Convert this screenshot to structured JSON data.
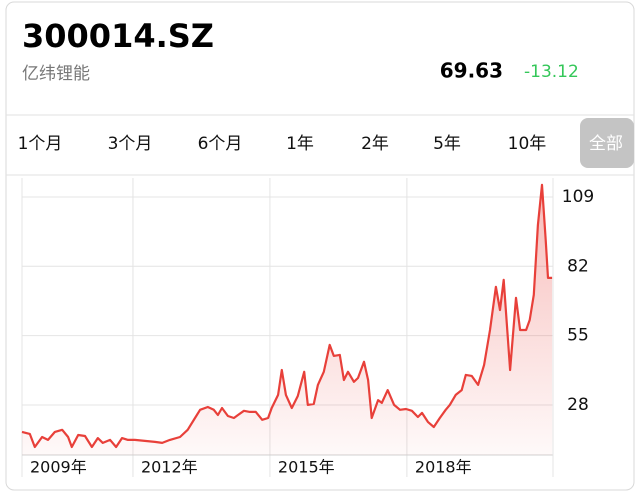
{
  "header": {
    "symbol": "300014.SZ",
    "name": "亿纬锂能",
    "price": "69.63",
    "change": "-13.12"
  },
  "tabs": [
    "1个月",
    "3个月",
    "6个月",
    "1年",
    "2年",
    "5年",
    "10年",
    "全部"
  ],
  "chart_data": {
    "type": "line",
    "x": [
      2009.57,
      2009.74,
      2009.85,
      2010.01,
      2010.14,
      2010.29,
      2010.45,
      2010.58,
      2010.66,
      2010.8,
      2010.95,
      2011.1,
      2011.23,
      2011.34,
      2011.5,
      2011.63,
      2011.76,
      2011.89,
      2012.04,
      2012.26,
      2012.48,
      2012.64,
      2012.81,
      2013.03,
      2013.2,
      2013.36,
      2013.47,
      2013.64,
      2013.77,
      2013.86,
      2013.95,
      2014.08,
      2014.21,
      2014.3,
      2014.43,
      2014.56,
      2014.69,
      2014.83,
      2014.96,
      2015.04,
      2015.18,
      2015.26,
      2015.35,
      2015.48,
      2015.61,
      2015.75,
      2015.83,
      2015.96,
      2016.05,
      2016.18,
      2016.31,
      2016.4,
      2016.53,
      2016.62,
      2016.71,
      2016.84,
      2016.93,
      2017.06,
      2017.15,
      2017.23,
      2017.37,
      2017.45,
      2017.58,
      2017.72,
      2017.85,
      2017.98,
      2018.11,
      2018.24,
      2018.33,
      2018.46,
      2018.59,
      2018.72,
      2018.85,
      2018.94,
      2019.07,
      2019.2,
      2019.29,
      2019.42,
      2019.56,
      2019.69,
      2019.82,
      2019.95,
      2020.04,
      2020.12,
      2020.26,
      2020.39,
      2020.48,
      2020.61,
      2020.69,
      2020.78,
      2020.87,
      2020.96,
      2021.04,
      2021.09,
      2021.18
    ],
    "series": [
      {
        "color": "#e8403a",
        "values": [
          17.5,
          16.7,
          11.6,
          15.5,
          14.4,
          17.5,
          18.3,
          15.5,
          11.6,
          16.3,
          15.9,
          11.6,
          15.1,
          13.2,
          14.4,
          11.6,
          15.1,
          14.4,
          14.4,
          14.0,
          13.6,
          13.2,
          14.4,
          15.5,
          18.3,
          22.9,
          26.1,
          27.2,
          26.1,
          24.1,
          26.8,
          23.7,
          22.9,
          24.1,
          25.7,
          25.3,
          25.3,
          22.2,
          22.9,
          26.8,
          31.9,
          41.6,
          31.9,
          26.8,
          31.5,
          40.9,
          28.0,
          28.4,
          35.8,
          40.9,
          51.4,
          47.1,
          47.5,
          37.7,
          40.9,
          37.0,
          38.5,
          44.8,
          37.7,
          22.9,
          29.9,
          28.8,
          33.8,
          28.0,
          26.1,
          26.4,
          25.7,
          23.3,
          24.9,
          21.4,
          19.4,
          22.9,
          26.1,
          28.0,
          31.9,
          33.8,
          39.7,
          39.3,
          35.8,
          43.6,
          57.2,
          74.0,
          65.0,
          76.7,
          41.6,
          69.7,
          57.2,
          57.2,
          61.1,
          70.9,
          98.1,
          113.7,
          92.3,
          77.5,
          77.5
        ]
      }
    ],
    "xlim": [
      2009.57,
      2021.2
    ],
    "xticks": [
      {
        "value": 2009.57,
        "label": "2009年"
      },
      {
        "value": 2012,
        "label": "2012年"
      },
      {
        "value": 2015,
        "label": "2015年"
      },
      {
        "value": 2018,
        "label": "2018年"
      }
    ],
    "ylim": [
      8.5,
      116.4
    ],
    "yticks": [
      28,
      55,
      82,
      109
    ],
    "grid": true
  }
}
